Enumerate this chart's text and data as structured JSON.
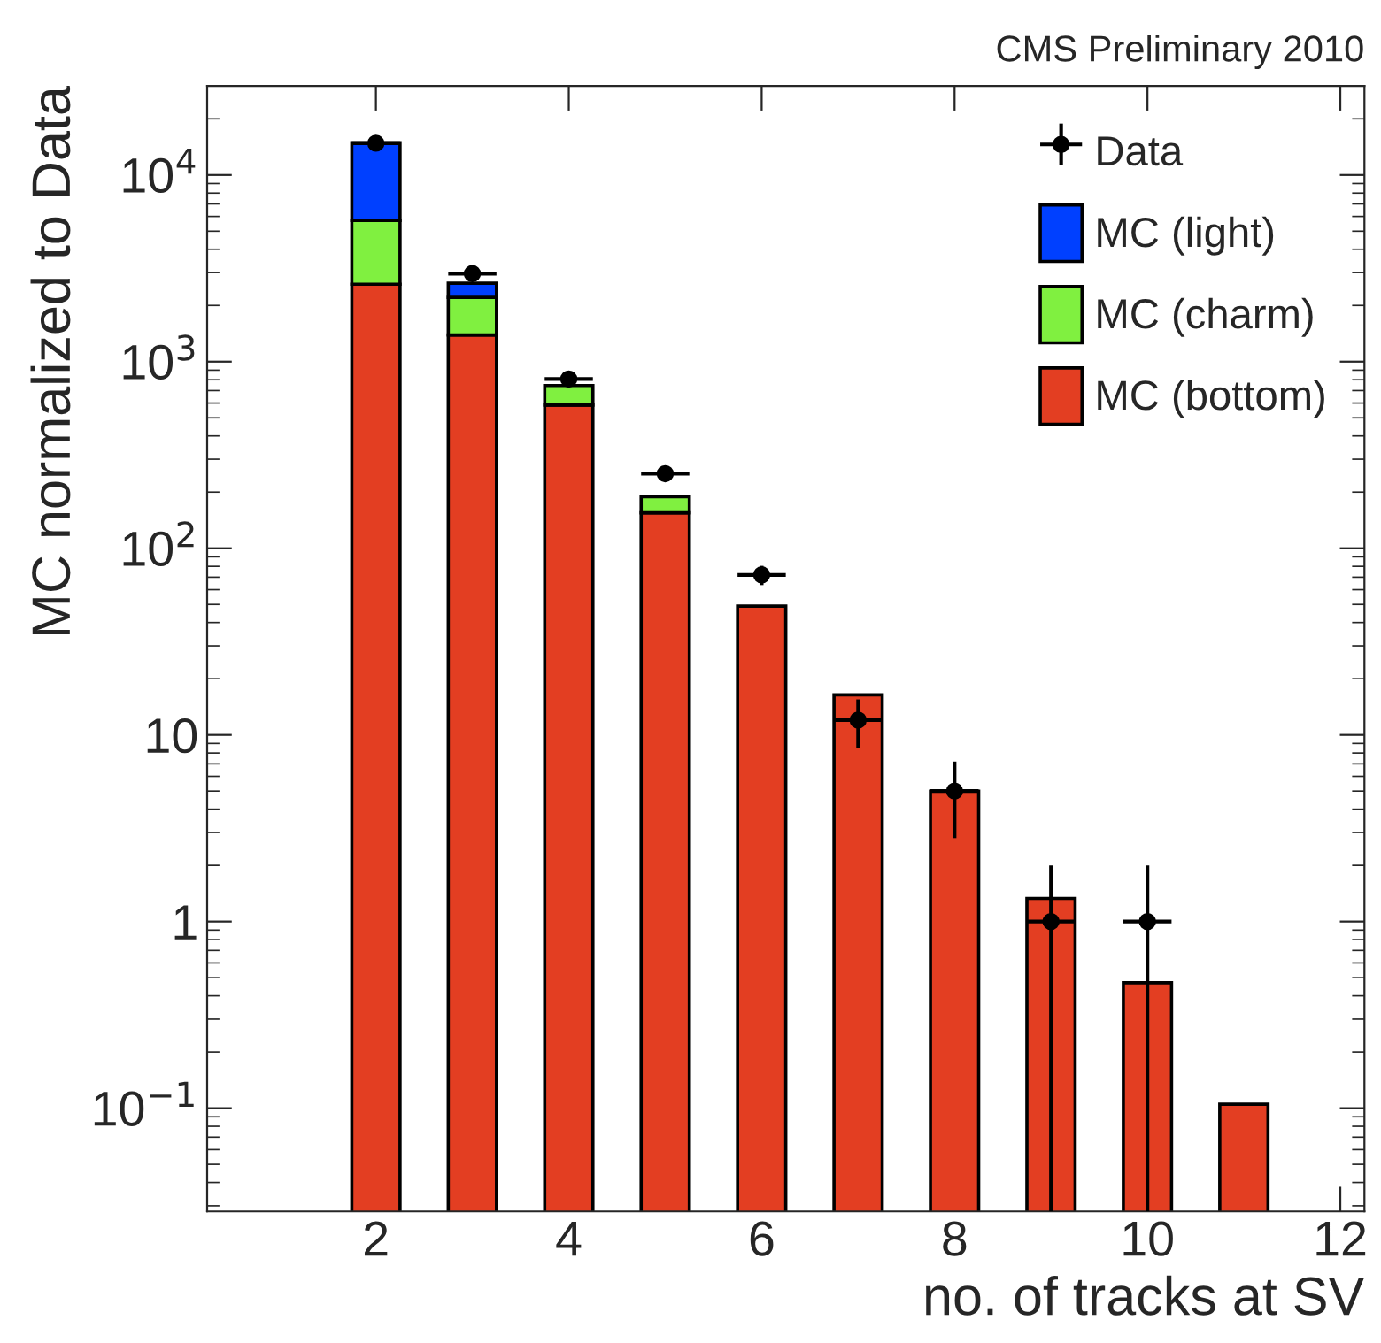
{
  "chart_data": {
    "type": "bar",
    "title": "CMS Preliminary 2010",
    "xlabel": "no. of tracks at SV",
    "ylabel": "MC normalized to Data",
    "stacked": true,
    "log": "y",
    "grid": false,
    "legend": "top right",
    "x": [
      2,
      3,
      4,
      5,
      6,
      7,
      8,
      9,
      10,
      11
    ],
    "series": [
      {
        "name": "MC (bottom)",
        "color": "#e33e22",
        "values": [
          2600,
          1390,
          585,
          155,
          49,
          16.4,
          5.0,
          1.33,
          0.47,
          0.105
        ]
      },
      {
        "name": "MC (charm)",
        "color": "#80f040",
        "values": [
          3100,
          820,
          160,
          34,
          null,
          null,
          null,
          null,
          null,
          null
        ]
      },
      {
        "name": "MC (light)",
        "color": "#0040ff",
        "values": [
          9200,
          420,
          null,
          null,
          null,
          null,
          null,
          null,
          null,
          null
        ]
      },
      {
        "name": "Data",
        "type": "scatter",
        "color": "#000000",
        "marker": "circle",
        "x": [
          2,
          3,
          4,
          5,
          6,
          7,
          8,
          9,
          10
        ],
        "values": [
          14800,
          2960,
          807,
          251,
          72,
          12,
          5,
          1,
          1
        ],
        "errors": [
          122,
          54,
          28,
          16,
          8.5,
          3.5,
          2.2,
          [
            0.972,
            1
          ],
          [
            0.972,
            1
          ]
        ],
        "xerrors": [
          0.25,
          0.25,
          0.25,
          0.25,
          0.25,
          0.25,
          0.25,
          0.25,
          0.25
        ]
      }
    ],
    "xlim": [
      0.25,
      12.25
    ],
    "xticks": [
      2,
      4,
      6,
      8,
      10,
      12
    ],
    "ylim": [
      0.028,
      30000
    ],
    "yticks": [
      {
        "value": 0.1,
        "label": "10$^{−1}$"
      },
      1,
      10,
      {
        "value": 100,
        "label": "10$^{2}$"
      },
      {
        "value": 1000,
        "label": "10$^{3}$"
      },
      {
        "value": 10000,
        "label": "10$^{4}$"
      }
    ]
  }
}
